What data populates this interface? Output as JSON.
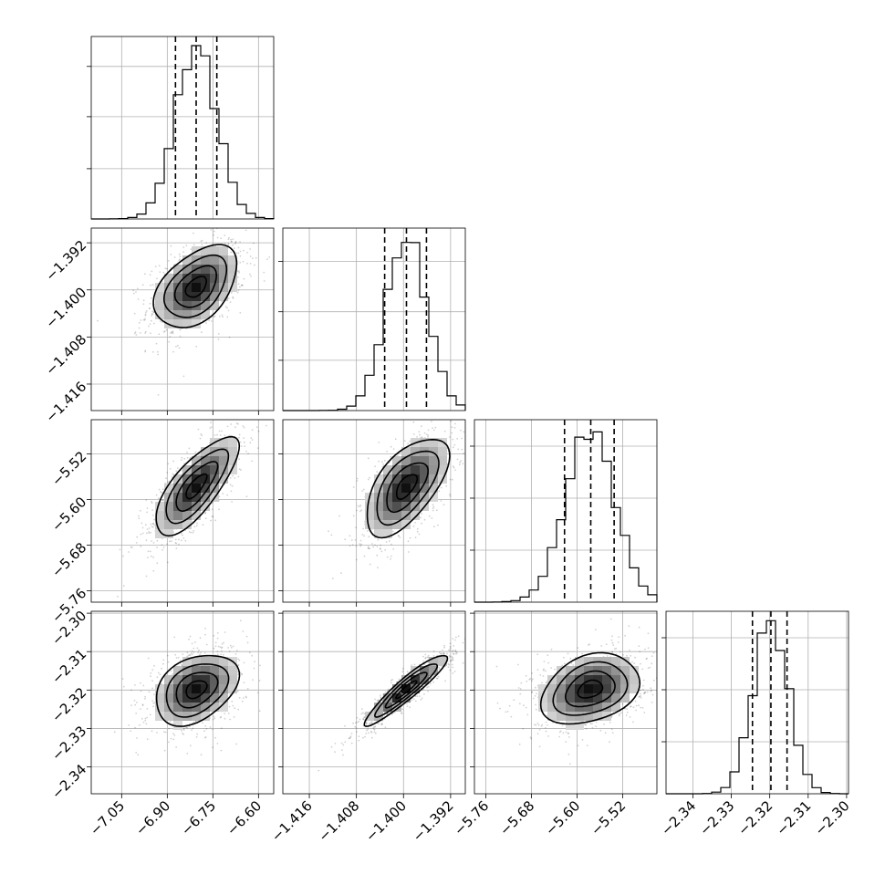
{
  "chart_data": {
    "type": "corner",
    "parameters": [
      {
        "range": [
          -7.15,
          -6.55
        ],
        "ticks": [
          -7.05,
          -6.9,
          -6.75,
          -6.6
        ],
        "tick_labels": [
          "−7.05",
          "−6.90",
          "−6.75",
          "−6.60"
        ],
        "quantiles": [
          -6.873,
          -6.805,
          -6.737
        ],
        "mean": -6.805,
        "sd": 0.068,
        "hist_peak": 1.0,
        "hist_ticks": [
          0.29,
          0.59,
          0.88
        ]
      },
      {
        "range": [
          -1.4205,
          -1.3895
        ],
        "ticks": [
          -1.416,
          -1.408,
          -1.4,
          -1.392
        ],
        "tick_labels": [
          "−1.416",
          "−1.408",
          "−1.400",
          "−1.392"
        ],
        "quantiles": [
          -1.4032,
          -1.3995,
          -1.3961
        ],
        "mean": -1.3995,
        "sd": 0.0035,
        "hist_peak": 1.0,
        "hist_ticks": [
          0.29,
          0.57,
          0.86
        ]
      },
      {
        "range": [
          -5.78,
          -5.46
        ],
        "ticks": [
          -5.76,
          -5.68,
          -5.6,
          -5.52
        ],
        "tick_labels": [
          "−5.76",
          "−5.68",
          "−5.60",
          "−5.52"
        ],
        "quantiles": [
          -5.622,
          -5.576,
          -5.535
        ],
        "mean": -5.577,
        "sd": 0.043,
        "hist_peak": 1.0,
        "hist_ticks": [
          0.3,
          0.6,
          0.9
        ]
      },
      {
        "range": [
          -2.347,
          -2.2995
        ],
        "ticks": [
          -2.34,
          -2.33,
          -2.32,
          -2.31,
          -2.3
        ],
        "tick_labels": [
          "−2.34",
          "−2.33",
          "−2.32",
          "−2.31",
          "−2.30"
        ],
        "quantiles": [
          -2.3245,
          -2.3197,
          -2.3155
        ],
        "mean": -2.3198,
        "sd": 0.0046,
        "hist_peak": 1.0,
        "hist_ticks": [
          0.3,
          0.6,
          0.9
        ]
      }
    ],
    "correlations": [
      [
        1.0,
        0.45,
        0.75,
        0.35
      ],
      [
        0.45,
        1.0,
        0.6,
        0.93
      ],
      [
        0.75,
        0.6,
        1.0,
        0.3
      ],
      [
        0.35,
        0.93,
        0.3,
        1.0
      ]
    ],
    "contour_levels_sigma": [
      0.5,
      1.0,
      1.5,
      2.0
    ],
    "n_scatter_points": 900,
    "grid": true
  }
}
